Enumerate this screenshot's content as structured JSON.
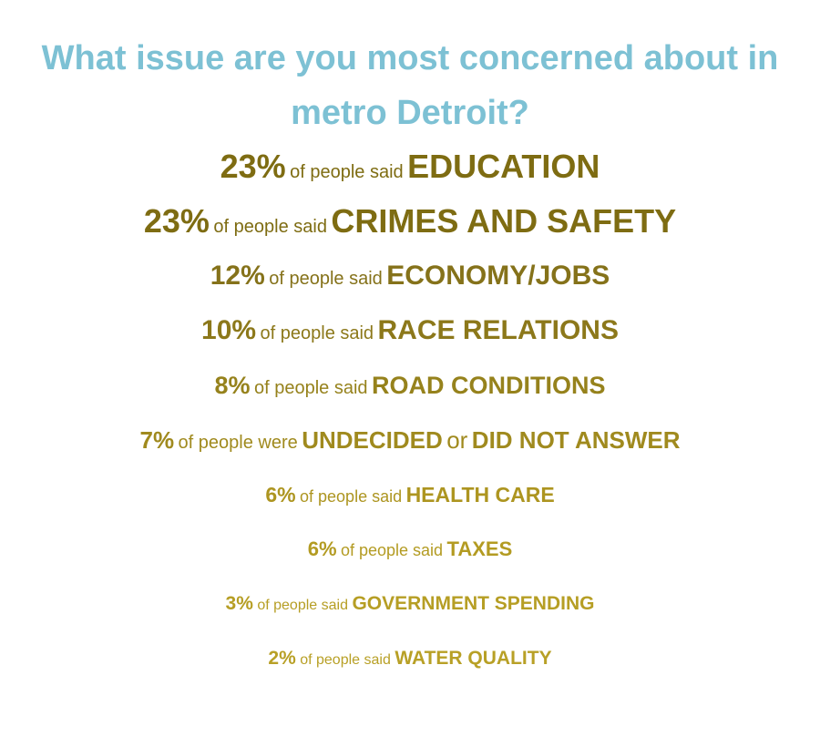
{
  "title": "What issue are you most concerned about in metro Detroit?",
  "items": [
    {
      "percent": "23%",
      "phrase": "of people said",
      "topic": "EDUCATION"
    },
    {
      "percent": "23%",
      "phrase": "of people said",
      "topic": "CRIMES AND SAFETY"
    },
    {
      "percent": "12%",
      "phrase": "of people said",
      "topic": "ECONOMY/JOBS"
    },
    {
      "percent": "10%",
      "phrase": "of people said",
      "topic": "RACE RELATIONS"
    },
    {
      "percent": "8%",
      "phrase": "of people said",
      "topic": "ROAD CONDITIONS"
    },
    {
      "percent": "7%",
      "phrase": "of people were",
      "topic": "UNDECIDED",
      "joiner": "or",
      "topic_2": "DID NOT ANSWER"
    },
    {
      "percent": "6%",
      "phrase": "of people said",
      "topic": "HEALTH CARE"
    },
    {
      "percent": "6%",
      "phrase": "of people said",
      "topic": "TAXES"
    },
    {
      "percent": "3%",
      "phrase": "of people said",
      "topic": "GOVERNMENT SPENDING"
    },
    {
      "percent": "2%",
      "phrase": "of people said",
      "topic": "WATER QUALITY"
    }
  ]
}
